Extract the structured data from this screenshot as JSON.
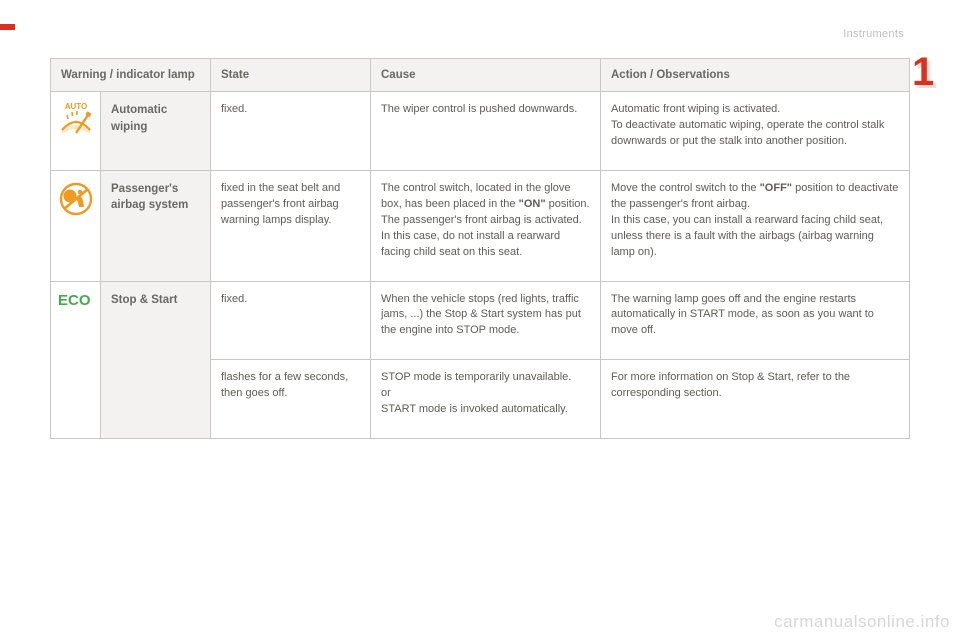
{
  "section_title": "Instruments",
  "chapter_number": "1",
  "watermark": "carmanualsonline.info",
  "table": {
    "headers": {
      "lamp": "Warning / indicator lamp",
      "state": "State",
      "cause": "Cause",
      "action": "Action / Observations"
    },
    "rows": {
      "auto_wiping": {
        "name": "Automatic wiping",
        "state": "fixed.",
        "cause": "The wiper control is pushed downwards.",
        "action": "Automatic front wiping is activated.\nTo deactivate automatic wiping, operate the control stalk downwards or put the stalk into another position."
      },
      "airbag": {
        "name": "Passenger's airbag system",
        "state": "fixed in the seat belt and passenger's front airbag warning lamps display.",
        "cause_pre": "The control switch, located in the glove box, has been placed in the ",
        "cause_bold": "\"ON\"",
        "cause_post": " position.\nThe passenger's front airbag is activated.\nIn this case, do not install a rearward facing child seat on this seat.",
        "action_pre": "Move the control switch to the ",
        "action_bold": "\"OFF\"",
        "action_post": " position to deactivate the passenger's front airbag.\nIn this case, you can install a rearward facing child seat, unless there is a fault with the airbags (airbag warning lamp on)."
      },
      "stop_start": {
        "name": "Stop & Start",
        "r1": {
          "state": "fixed.",
          "cause": "When the vehicle stops (red lights, traffic jams, ...) the Stop & Start system has put the engine into STOP mode.",
          "action": "The warning lamp goes off and the engine restarts automatically in START mode, as soon as you want to move off."
        },
        "r2": {
          "state": "flashes for a few seconds, then goes off.",
          "cause": "STOP mode is temporarily unavailable.\nor\nSTART mode is invoked automatically.",
          "action": "For more information on Stop & Start, refer to the corresponding section."
        }
      }
    }
  },
  "icons": {
    "auto_wiping_label": "AUTO",
    "eco_label": "ECO"
  },
  "colors": {
    "accent": "#d8321e",
    "icon_amber": "#ef9b1f",
    "icon_green": "#3fae49",
    "header_bg": "#f3f2f0",
    "border": "#c9c7c3",
    "text": "#5f5c57"
  }
}
